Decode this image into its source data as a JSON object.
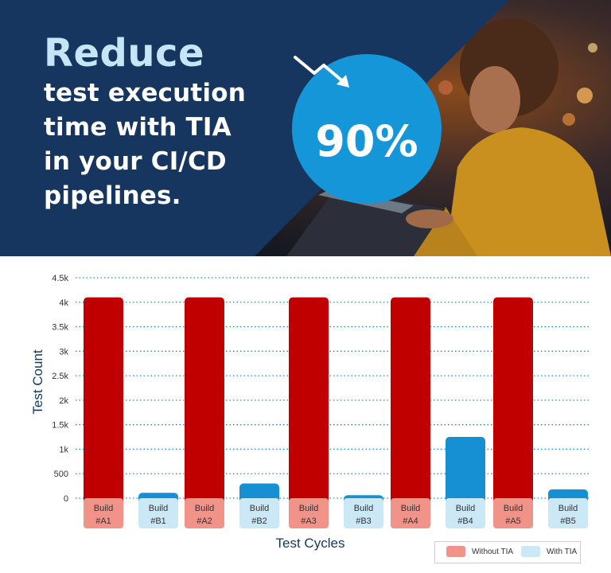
{
  "hero": {
    "headline_big": "Reduce",
    "headline_lines": [
      "test execution",
      "time with TIA",
      "in your CI/CD",
      "pipelines."
    ],
    "stat": "90%",
    "colors": {
      "navy": "#17365f",
      "accent_blue": "#1596d8",
      "light_blue": "#c6e6f7"
    },
    "icons": [
      "trend-down-arrow-icon"
    ]
  },
  "chart_data": {
    "type": "bar",
    "xlabel": "Test Cycles",
    "ylabel": "Test Count",
    "ylim": [
      0,
      4500
    ],
    "yticks": [
      "0",
      "500",
      "1k",
      "1.5k",
      "2k",
      "2.5k",
      "3k",
      "3.5k",
      "4k",
      "4.5k"
    ],
    "grid": true,
    "legend_position": "bottom-right",
    "groups": [
      {
        "without": {
          "label": "Build\n#A1",
          "l1": "Build",
          "l2": "#A1",
          "value": 4100
        },
        "with": {
          "label": "Build\n#B1",
          "l1": "Build",
          "l2": "#B1",
          "value": 110
        }
      },
      {
        "without": {
          "label": "Build\n#A2",
          "l1": "Build",
          "l2": "#A2",
          "value": 4100
        },
        "with": {
          "label": "Build\n#B2",
          "l1": "Build",
          "l2": "#B2",
          "value": 300
        }
      },
      {
        "without": {
          "label": "Build\n#A3",
          "l1": "Build",
          "l2": "#A3",
          "value": 4100
        },
        "with": {
          "label": "Build\n#B3",
          "l1": "Build",
          "l2": "#B3",
          "value": 60
        }
      },
      {
        "without": {
          "label": "Build\n#A4",
          "l1": "Build",
          "l2": "#A4",
          "value": 4100
        },
        "with": {
          "label": "Build\n#B4",
          "l1": "Build",
          "l2": "#B4",
          "value": 1250
        }
      },
      {
        "without": {
          "label": "Build\n#A5",
          "l1": "Build",
          "l2": "#A5",
          "value": 4100
        },
        "with": {
          "label": "Build\n#B5",
          "l1": "Build",
          "l2": "#B5",
          "value": 180
        }
      }
    ],
    "series": [
      {
        "name": "Without TIA",
        "color": "#c00000",
        "label_bg": "#f2938a"
      },
      {
        "name": "With TIA",
        "color": "#1690d2",
        "label_bg": "#cbe8f7"
      }
    ]
  }
}
